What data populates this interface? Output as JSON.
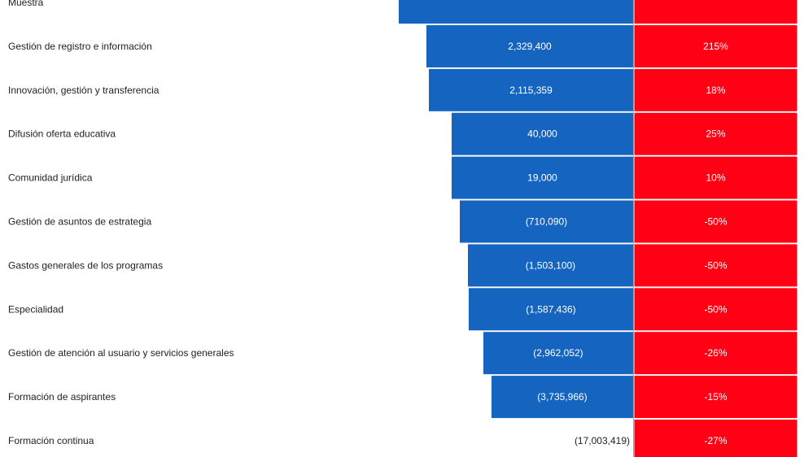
{
  "chart_data": {
    "type": "bar",
    "title": "",
    "xlabel": "",
    "ylabel": "",
    "categories": [
      "Muestra",
      "Gestión de registro e información",
      "Innovación, gestión y transferencia",
      "Difusión oferta educativa",
      "Comunidad jurídica",
      "Gestión de asuntos de estrategia",
      "Gastos generales de los programas",
      "Especialidad",
      "Gestión de atención al usuario y servicios generales",
      "Formación de aspirantes",
      "Formación continua"
    ],
    "series": [
      {
        "values": [
          null,
          2329400,
          2115359,
          40000,
          19000,
          -710090,
          -1503100,
          -1587436,
          -2962052,
          -3735966,
          -17003419
        ],
        "labels": [
          "",
          "2,329,400",
          "2,115,359",
          "40,000",
          "19,000",
          "(710,090)",
          "(1,503,100)",
          "(1,587,436)",
          "(2,962,052)",
          "(3,735,966)",
          "(17,003,419)"
        ],
        "color": "#1565c0"
      },
      {
        "values": [
          null,
          215,
          18,
          25,
          10,
          -50,
          -50,
          -50,
          -26,
          -15,
          -27
        ],
        "labels": [
          "",
          "215%",
          "18%",
          "25%",
          "10%",
          "-50%",
          "-50%",
          "-50%",
          "-26%",
          "-15%",
          "-27%"
        ],
        "color": "#ff0015"
      }
    ],
    "grid": false,
    "legend": "none"
  }
}
